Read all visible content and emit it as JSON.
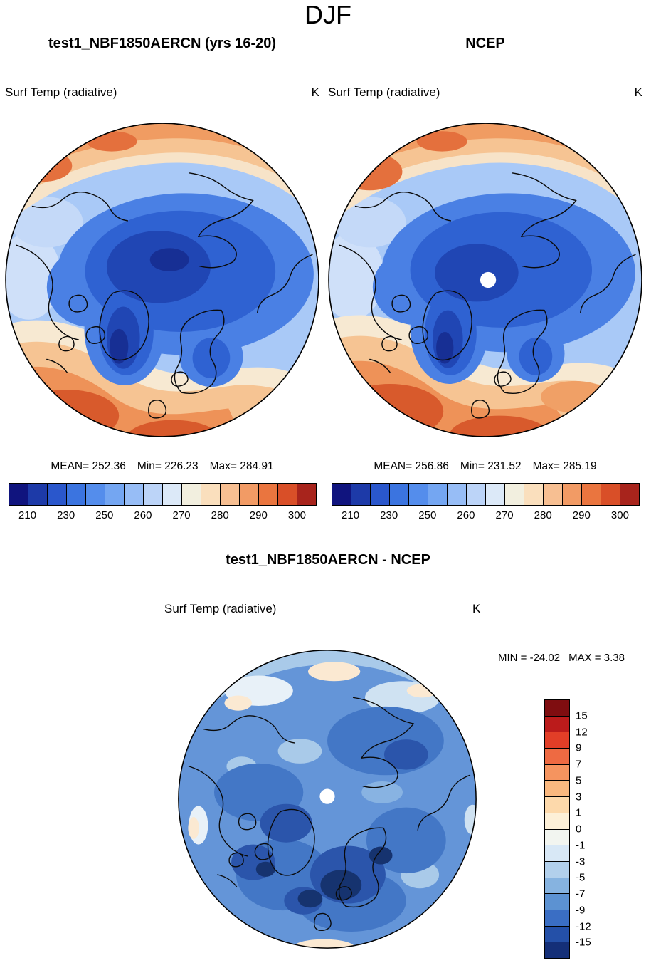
{
  "title": "DJF",
  "header": {
    "left": "test1_NBF1850AERCN (yrs 16-20)",
    "right": "NCEP"
  },
  "panels": {
    "model": {
      "field": "Surf Temp (radiative)",
      "units": "K",
      "mean": "MEAN= 252.36",
      "min": "Min= 226.23",
      "max": "Max= 284.91"
    },
    "ncep": {
      "field": "Surf Temp (radiative)",
      "units": "K",
      "mean": "MEAN= 256.86",
      "min": "Min= 231.52",
      "max": "Max= 285.19"
    },
    "diff": {
      "title": "test1_NBF1850AERCN - NCEP",
      "field": "Surf Temp (radiative)",
      "units": "K",
      "min": "MIN = -24.02",
      "max": "MAX =  3.38"
    }
  },
  "colorbar_temp": {
    "ticks": [
      "210",
      "230",
      "250",
      "260",
      "270",
      "280",
      "290",
      "300"
    ],
    "colors": [
      "#10147e",
      "#1d3aa8",
      "#2a57cc",
      "#3b74e0",
      "#548dec",
      "#74a6f2",
      "#97bdf6",
      "#bcd4f8",
      "#dce9f8",
      "#f2efdf",
      "#fadfbd",
      "#f7bf92",
      "#f29b65",
      "#ea753f",
      "#d94f28",
      "#a8241c"
    ]
  },
  "colorbar_diff": {
    "ticks": [
      "15",
      "12",
      "9",
      "7",
      "5",
      "3",
      "1",
      "0",
      "-1",
      "-3",
      "-5",
      "-7",
      "-9",
      "-12",
      "-15"
    ],
    "colors": [
      "#7f0d10",
      "#bb1b1b",
      "#e23e27",
      "#ee6a42",
      "#f5945f",
      "#fab87f",
      "#fdd9ab",
      "#fdf0d8",
      "#f2f5f0",
      "#d8e8f6",
      "#b2d0ec",
      "#86b3e0",
      "#5c92d2",
      "#3a6ec4",
      "#2450a8",
      "#142f78"
    ]
  },
  "chart_data": [
    {
      "type": "heatmap",
      "title": "test1_NBF1850AERCN (yrs 16-20)",
      "variable": "Surf Temp (radiative)",
      "season": "DJF",
      "units": "K",
      "projection": "north-polar-stereographic",
      "stats": {
        "mean": 252.36,
        "min": 226.23,
        "max": 284.91
      },
      "contour_levels": [
        210,
        220,
        230,
        240,
        250,
        255,
        260,
        265,
        270,
        275,
        280,
        285,
        290,
        295,
        300
      ],
      "labeled_ticks": [
        210,
        230,
        250,
        260,
        270,
        280,
        290,
        300
      ],
      "legend_position": "bottom",
      "palette": "blue(cold) to red(warm), 16 bins"
    },
    {
      "type": "heatmap",
      "title": "NCEP",
      "variable": "Surf Temp (radiative)",
      "season": "DJF",
      "units": "K",
      "projection": "north-polar-stereographic",
      "stats": {
        "mean": 256.86,
        "min": 231.52,
        "max": 285.19
      },
      "contour_levels": [
        210,
        220,
        230,
        240,
        250,
        255,
        260,
        265,
        270,
        275,
        280,
        285,
        290,
        295,
        300
      ],
      "labeled_ticks": [
        210,
        230,
        250,
        260,
        270,
        280,
        290,
        300
      ],
      "legend_position": "bottom",
      "palette": "blue(cold) to red(warm), 16 bins"
    },
    {
      "type": "heatmap",
      "title": "test1_NBF1850AERCN - NCEP",
      "variable": "Surf Temp (radiative)",
      "season": "DJF",
      "units": "K",
      "projection": "north-polar-stereographic",
      "stats": {
        "min": -24.02,
        "max": 3.38
      },
      "contour_levels": [
        -15,
        -12,
        -9,
        -7,
        -5,
        -3,
        -1,
        0,
        1,
        3,
        5,
        7,
        9,
        12,
        15
      ],
      "legend_position": "right",
      "palette": "red(positive) to blue(negative), 16 bins; field is predominantly negative (model colder than NCEP)"
    }
  ]
}
